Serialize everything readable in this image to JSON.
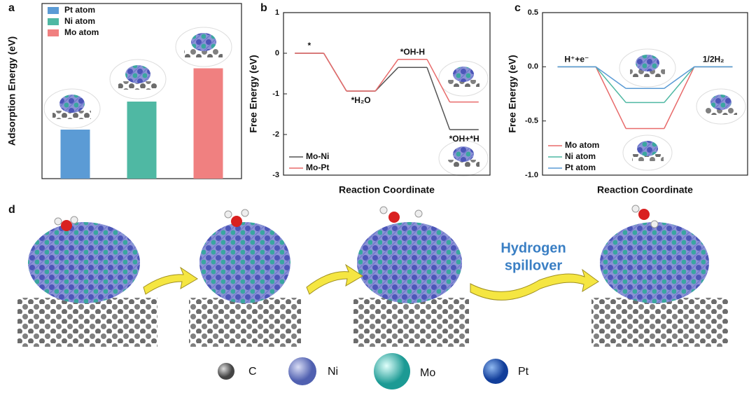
{
  "chart_data": [
    {
      "type": "bar",
      "panel_label": "a",
      "ylabel": "Adsorption Energy (eV)",
      "legend": "upper left",
      "series": [
        {
          "name": "Pt atom",
          "color": "#5b9bd5",
          "values": [
            0.28
          ]
        },
        {
          "name": "Ni atom",
          "color": "#4fb8a3",
          "values": [
            0.44
          ]
        },
        {
          "name": "Mo atom",
          "color": "#f08080",
          "values": [
            0.63
          ]
        }
      ]
    },
    {
      "type": "step",
      "panel_label": "b",
      "xlabel": "Reaction Coordinate",
      "ylabel": "Free Energy (eV)",
      "legend": "lower left",
      "categories": [
        "*",
        "*H₂O",
        "*OH-H",
        "*OH+*H"
      ],
      "ylim": [
        -3,
        1
      ],
      "yticks": [
        -3,
        -2,
        -1,
        0,
        1
      ],
      "series": [
        {
          "name": "Mo-Ni",
          "color": "#555555",
          "values": [
            0,
            -0.93,
            -0.35,
            -1.88
          ]
        },
        {
          "name": "Mo-Pt",
          "color": "#e86a6a",
          "values": [
            0,
            -0.93,
            -0.15,
            -1.2
          ]
        }
      ]
    },
    {
      "type": "step",
      "panel_label": "c",
      "xlabel": "Reaction Coordinate",
      "ylabel": "Free Energy (eV)",
      "legend": "lower left",
      "categories": [
        "H⁺+e⁻",
        null,
        "1/2H₂"
      ],
      "ylim": [
        -1,
        0.5
      ],
      "yticks": [
        {
          "value": -1,
          "label": "-1.0"
        },
        {
          "value": -0.5,
          "label": "-0.5"
        },
        {
          "value": 0,
          "label": "0.0"
        },
        {
          "value": 0.5,
          "label": "0.5"
        }
      ],
      "series": [
        {
          "name": "Mo atom",
          "color": "#e86a6a",
          "values": [
            0,
            -0.57,
            0
          ]
        },
        {
          "name": "Ni atom",
          "color": "#4fb8a3",
          "values": [
            0,
            -0.33,
            0
          ]
        },
        {
          "name": "Pt atom",
          "color": "#5b9bd5",
          "values": [
            0,
            -0.2,
            0
          ]
        }
      ]
    }
  ],
  "panel_d": {
    "panel_label": "d",
    "arrow_text": [
      "Hydrogen",
      "spillover"
    ],
    "legend": [
      "C",
      "Ni",
      "Mo",
      "Pt"
    ]
  }
}
